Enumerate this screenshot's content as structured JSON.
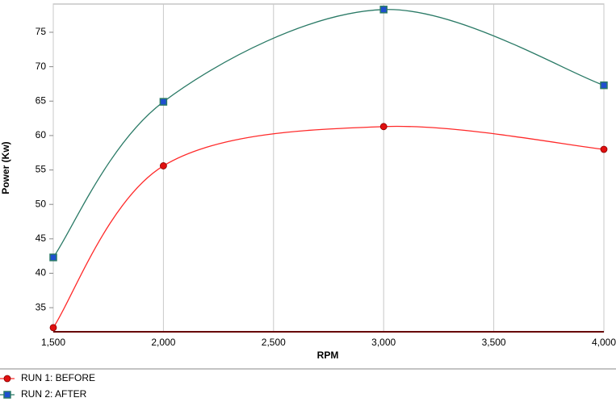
{
  "chart_data": {
    "type": "line",
    "x_label": "RPM",
    "y_label": "Power (Kw)",
    "x": [
      1500,
      2000,
      3000,
      4000
    ],
    "series": [
      {
        "name": "RUN 1: BEFORE",
        "color": "#ff2a2a",
        "marker": "circle",
        "marker_color": "#e01010",
        "values": [
          32.1,
          55.6,
          61.3,
          58.0
        ]
      },
      {
        "name": "RUN 2: AFTER",
        "color": "#2a7a66",
        "marker": "square",
        "marker_color": "#1f4fd0",
        "values": [
          42.3,
          64.9,
          78.3,
          67.3
        ]
      }
    ],
    "xlim": [
      1500,
      4000
    ],
    "xticks": [
      {
        "value": 1500,
        "label": "1,500"
      },
      {
        "value": 2000,
        "label": "2,000"
      },
      {
        "value": 2500,
        "label": "2,500"
      },
      {
        "value": 3000,
        "label": "3,000"
      },
      {
        "value": 3500,
        "label": "3,500"
      },
      {
        "value": 4000,
        "label": "4,000"
      }
    ],
    "ylim": [
      31.5,
      79.1
    ],
    "yticks": [
      35,
      40,
      45,
      50,
      55,
      60,
      65,
      70,
      75
    ],
    "grid": "x",
    "legend": "bottom"
  }
}
